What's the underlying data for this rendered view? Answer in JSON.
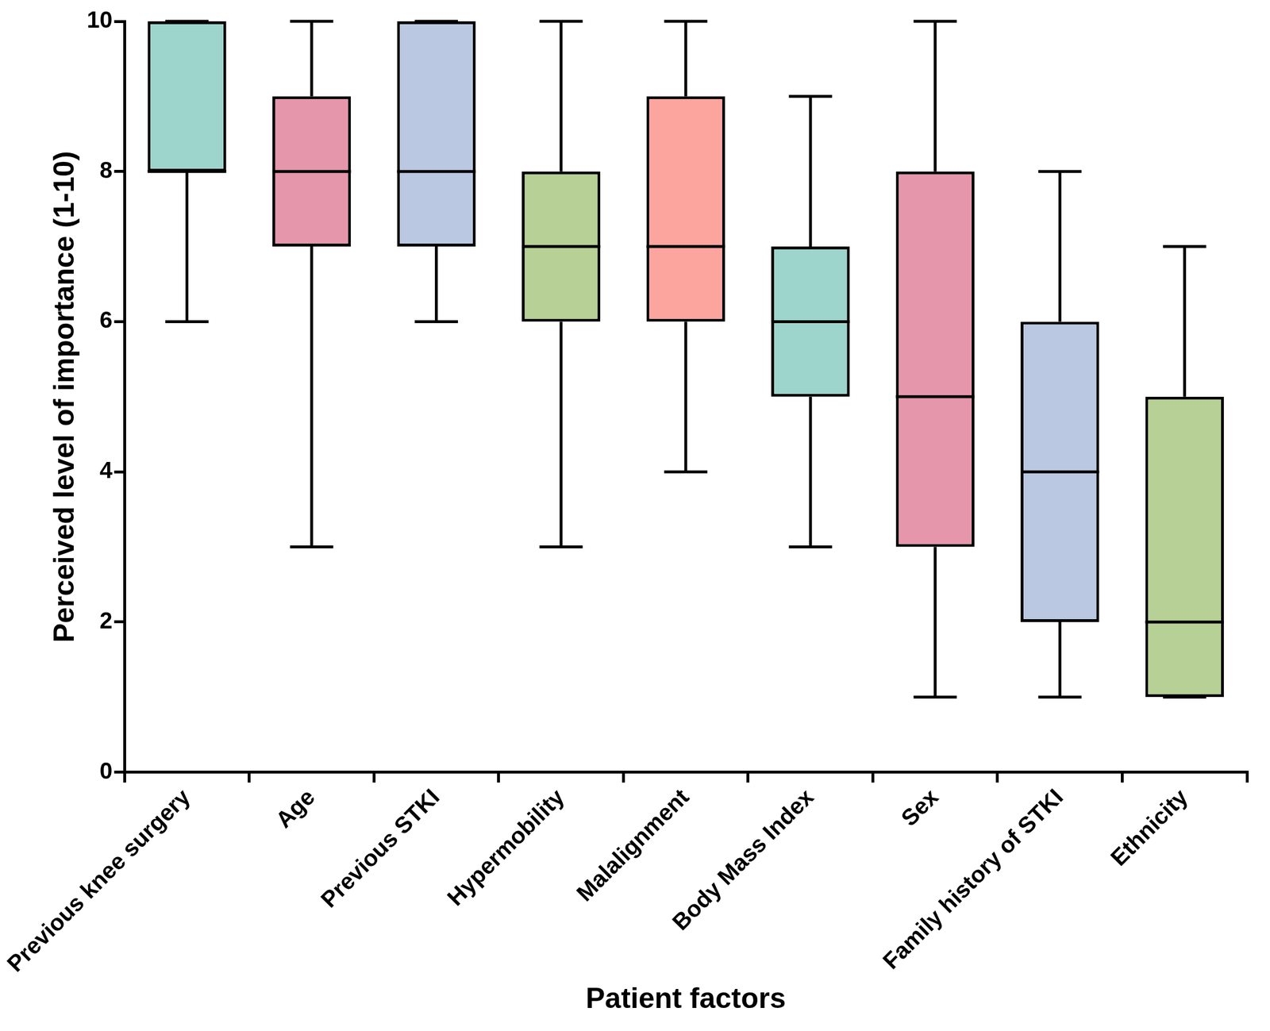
{
  "chart_data": {
    "type": "box",
    "x_label": "Patient factors",
    "y_label": "Perceived level of importance (1-10)",
    "categories": [
      "Previous knee surgery",
      "Age",
      "Previous STKI",
      "Hypermobility",
      "Malalignment",
      "Body Mass Index",
      "Sex",
      "Family history of STKI",
      "Ethnicity"
    ],
    "min": [
      6,
      3,
      6,
      3,
      4,
      3,
      1,
      1,
      1
    ],
    "q1": [
      8,
      7,
      7,
      6,
      6,
      5,
      3,
      2,
      1
    ],
    "median": [
      8,
      8,
      8,
      7,
      7,
      6,
      5,
      4,
      2
    ],
    "q3": [
      10,
      9,
      10,
      8,
      9,
      7,
      8,
      6,
      5
    ],
    "max": [
      10,
      10,
      10,
      10,
      10,
      9,
      10,
      8,
      7
    ],
    "colors": [
      "#9dd5cc",
      "#e596ab",
      "#bac8e2",
      "#b6d095",
      "#fca59e",
      "#9dd5cc",
      "#e596ab",
      "#bac8e2",
      "#b6d095"
    ],
    "ylim": [
      0,
      10
    ],
    "yticks": [
      0,
      2,
      4,
      6,
      8,
      10
    ],
    "grid": false
  }
}
